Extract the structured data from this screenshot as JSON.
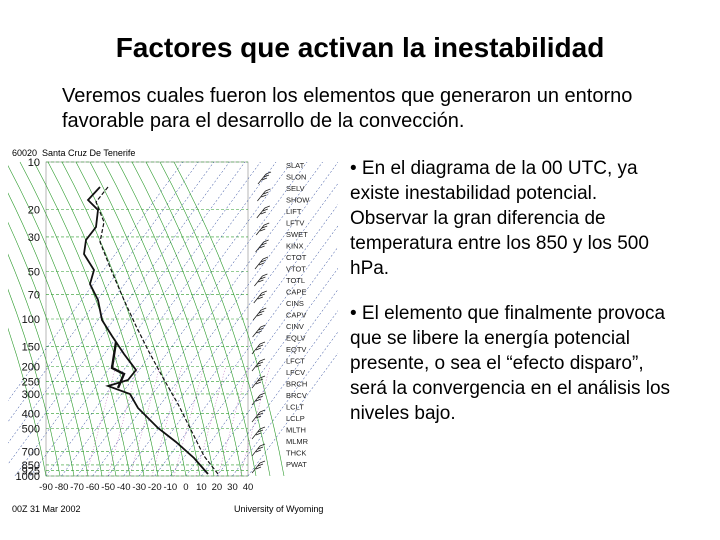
{
  "slide": {
    "title": "Factores que activan la inestabilidad",
    "intro": "Veremos cuales fueron los elementos que generaron un entorno favorable para el desarrollo de la convección.",
    "bullets": [
      "• En el diagrama de la 00 UTC, ya existe inestabilidad potencial. Observar la gran diferencia de temperatura entre los 850 y los 500 hPa.",
      "• El elemento que finalmente provoca que se libere la energía potencial presente, o sea el “efecto disparo”, será la convergencia en el análisis los niveles bajo."
    ]
  },
  "sounding": {
    "station_id": "60020",
    "station_name": "Santa Cruz De Tenerife",
    "date_label": "00Z 31 Mar 2002",
    "source_label": "University of Wyoming",
    "pressure_labels": [
      "10",
      "20",
      "30",
      "50",
      "70",
      "100",
      "150",
      "200",
      "250",
      "300",
      "400",
      "500",
      "700",
      "850",
      "925",
      "1000"
    ],
    "temperature_labels": [
      "-90",
      "-80",
      "-70",
      "-60",
      "-50",
      "-40",
      "-30",
      "-20",
      "-10",
      "0",
      "10",
      "20",
      "30",
      "40"
    ],
    "index_labels": [
      "SLAT",
      "SLON",
      "SELV",
      "SHOW",
      "LIFT",
      "LFTV",
      "SWET",
      "KINX",
      "CTOT",
      "VTOT",
      "TOTL",
      "CAPE",
      "CINS",
      "CAPV",
      "CINV",
      "EQLV",
      "EQTV",
      "LFCT",
      "LFCV",
      "BRCH",
      "BRCV",
      "LCLT",
      "LCLP",
      "MLTH",
      "MLMR",
      "THCK",
      "PWAT"
    ],
    "colors": {
      "dry_adiabat": "#2a9a2a",
      "isotherm": "#1e3c96",
      "isobar": "#2a9a2a",
      "mixing_ratio": "#b04ab0",
      "trace": "#111111"
    }
  }
}
